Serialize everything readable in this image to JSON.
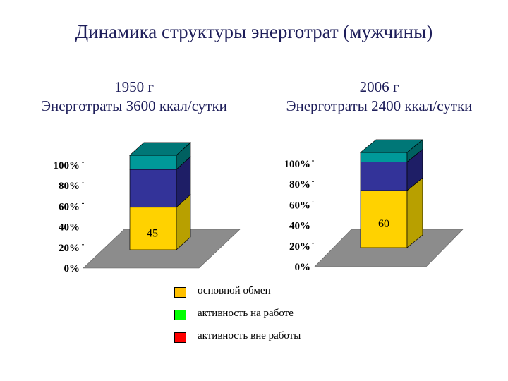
{
  "title": "Динамика структуры энерготрат (мужчины)",
  "chart_data": [
    {
      "type": "bar",
      "stacked": true,
      "three_d": true,
      "header": [
        "1950 г",
        "Энерготраты 3600 ккал/сутки"
      ],
      "y_ticks": [
        "0%",
        "20%",
        "40%",
        "60%",
        "80%",
        "100%"
      ],
      "ylim": [
        0,
        100
      ],
      "segments": [
        {
          "value": 45,
          "color": "#FFD200",
          "side": "#B8A000",
          "top": "#E6C800"
        },
        {
          "value": 40,
          "color": "#333399",
          "side": "#1E1E66",
          "top": "#2A2A80"
        },
        {
          "value": 15,
          "color": "#009999",
          "side": "#006060",
          "top": "#007777"
        }
      ],
      "data_labels": [
        {
          "text": "45",
          "segment": 0
        }
      ]
    },
    {
      "type": "bar",
      "stacked": true,
      "three_d": true,
      "header": [
        "2006 г",
        "Энерготраты 2400 ккал/сутки"
      ],
      "y_ticks": [
        "0%",
        "20%",
        "40%",
        "60%",
        "80%",
        "100%"
      ],
      "ylim": [
        0,
        100
      ],
      "segments": [
        {
          "value": 60,
          "color": "#FFD200",
          "side": "#B8A000",
          "top": "#E6C800"
        },
        {
          "value": 30,
          "color": "#333399",
          "side": "#1E1E66",
          "top": "#2A2A80"
        },
        {
          "value": 10,
          "color": "#009999",
          "side": "#006060",
          "top": "#007777"
        }
      ],
      "data_labels": [
        {
          "text": "60",
          "segment": 0
        }
      ]
    }
  ],
  "legend": [
    {
      "label": "основной обмен",
      "color": "#FFC000"
    },
    {
      "label": "активность на работе",
      "color": "#00FF00"
    },
    {
      "label": "активность вне работы",
      "color": "#FF0000"
    }
  ]
}
